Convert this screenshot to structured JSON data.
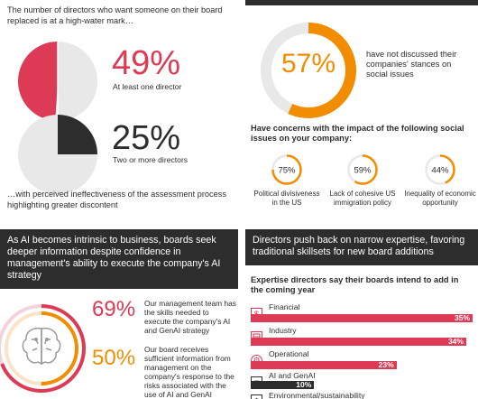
{
  "colors": {
    "red": "#dc3a55",
    "orange": "#f28c00",
    "dark": "#2d2d2d",
    "grey": "#e8e8e8",
    "white": "#ffffff"
  },
  "panel_tl": {
    "heading": "The number of directors who want someone on their board replaced is at a high-water mark…",
    "stat1": {
      "value": "49%",
      "label": "At least one director"
    },
    "stat2": {
      "value": "25%",
      "label": "Two or more directors"
    },
    "footer": "…with perceived ineffectiveness of the assessment process highlighting greater discontent"
  },
  "panel_tr": {
    "big_value": "57%",
    "big_label": "have not discussed their companies' stances on social issues",
    "concerns_heading": "Have concerns with the impact of the following social issues on your company:",
    "concerns": [
      {
        "value": "75%",
        "label": "Political divisiveness in the US"
      },
      {
        "value": "59%",
        "label": "Lack of cohesive US immigration policy"
      },
      {
        "value": "44%",
        "label": "Inequality of economic opportunity"
      }
    ]
  },
  "panel_bl": {
    "header": "As AI becomes intrinsic to business, boards seek deeper information despite confidence in management's ability to execute the company's AI strategy",
    "stat1": {
      "value": "69%",
      "label": "Our management team has the skills needed to execute the company's AI and GenAI strategy"
    },
    "stat2": {
      "value": "50%",
      "label": "Our board receives sufficient information from management on the company's response to the risks associated with the use of AI and GenAI"
    }
  },
  "panel_br": {
    "header": "Directors push back on narrow expertise, favoring traditional skillsets for new board additions",
    "subheading": "Expertise directors say their boards intend to add in the coming year"
  },
  "chart_data": [
    {
      "type": "pie",
      "title": "",
      "values": [
        49
      ],
      "labels": [
        "At least one director"
      ]
    },
    {
      "type": "pie",
      "title": "",
      "values": [
        25
      ],
      "labels": [
        "Two or more directors"
      ]
    },
    {
      "type": "pie",
      "title": "",
      "values": [
        57
      ],
      "labels": [
        "have not discussed their companies' stances on social issues"
      ]
    },
    {
      "type": "pie",
      "title": "",
      "values": [
        75,
        59,
        44
      ],
      "labels": [
        "Political divisiveness in the US",
        "Lack of cohesive US immigration policy",
        "Inequality of economic opportunity"
      ]
    },
    {
      "type": "pie",
      "title": "",
      "values": [
        69,
        50
      ],
      "labels": [
        "Management team has the skills",
        "Board receives sufficient information"
      ]
    },
    {
      "type": "bar",
      "title": "Expertise directors say their boards intend to add in the coming year",
      "categories": [
        "Financial",
        "Industry",
        "Operational",
        "AI and GenAI",
        "Environmental/sustainability"
      ],
      "values": [
        35,
        34,
        23,
        10,
        null
      ],
      "value_labels": [
        "35%",
        "34%",
        "23%",
        "10%",
        ""
      ],
      "xlim": [
        0,
        35
      ]
    }
  ]
}
